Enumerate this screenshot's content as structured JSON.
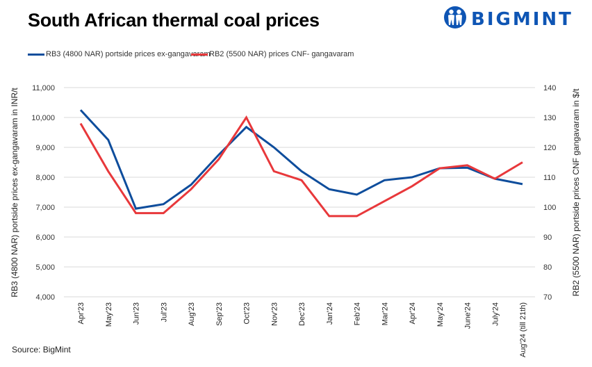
{
  "header": {
    "title": "South African thermal coal prices",
    "logo_text": "BIGMINT",
    "logo_icon": "bigmint-people-icon"
  },
  "footer": {
    "source": "Source: BigMint"
  },
  "colors": {
    "rb3": "#0e4d9c",
    "rb2": "#e8383b",
    "logo": "#0e55b4",
    "grid": "#d9d9d9"
  },
  "chart_data": {
    "type": "line",
    "title": "South African thermal coal prices",
    "categories": [
      "Apr'23",
      "May'23",
      "Jun'23",
      "Jul'23",
      "Aug'23",
      "Sep'23",
      "Oct'23",
      "Nov'23",
      "Dec'23",
      "Jan'24",
      "Feb'24",
      "Mar'24",
      "Apr'24",
      "May'24",
      "June'24",
      "July'24",
      "Aug'24 (till 21th)"
    ],
    "series": [
      {
        "name": "RB3 (4800 NAR) portside prices ex-gangavaram",
        "axis": "left",
        "color": "#0e4d9c",
        "values": [
          10250,
          9250,
          6950,
          7100,
          7750,
          8750,
          9680,
          9000,
          8200,
          7600,
          7420,
          7900,
          8000,
          8300,
          8320,
          7950,
          7770
        ]
      },
      {
        "name": "RB2 (5500 NAR) prices CNF- gangavaram",
        "axis": "right",
        "color": "#e8383b",
        "values": [
          128,
          112,
          98,
          98,
          106,
          116,
          130,
          112,
          109,
          97,
          97,
          102,
          107,
          113,
          114,
          109.5,
          115
        ]
      }
    ],
    "xlabel": "",
    "ylabel_left": "RB3 (4800 NAR) portside prices ex-gangavaram  in INR/t",
    "ylabel_right": "RB2 (5500 NAR) portside prices CNF  gangavaram  in $/t",
    "ylim_left": [
      4000,
      11000
    ],
    "ylim_right": [
      70,
      140
    ],
    "yticks_left": [
      "4,000",
      "5,000",
      "6,000",
      "7,000",
      "8,000",
      "9,000",
      "10,000",
      "11,000"
    ],
    "yticks_right": [
      "70",
      "80",
      "90",
      "100",
      "110",
      "120",
      "130",
      "140"
    ],
    "grid": true,
    "legend_position": "top"
  }
}
